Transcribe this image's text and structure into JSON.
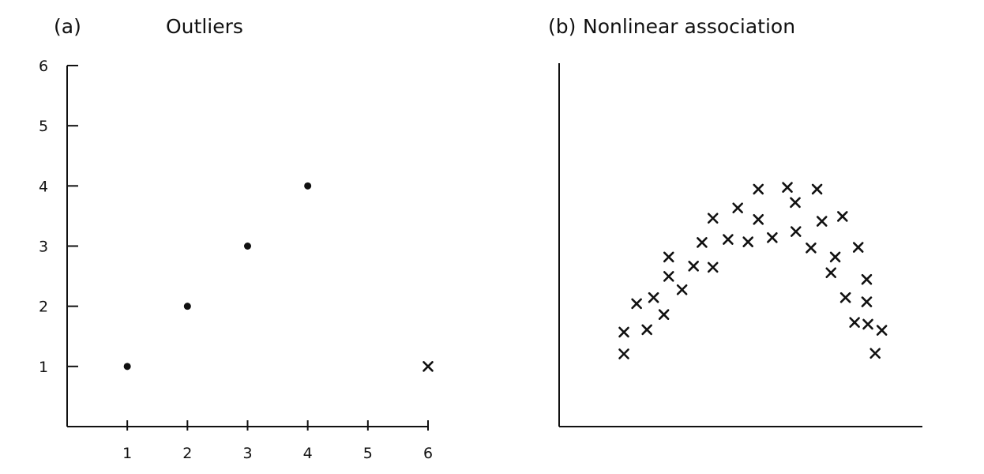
{
  "chart_data": [
    {
      "type": "scatter",
      "panel_label": "(a)",
      "title": "Outliers",
      "xlim": [
        0,
        6
      ],
      "ylim": [
        0,
        6
      ],
      "xticks": [
        "1",
        "2",
        "3",
        "4",
        "5",
        "6"
      ],
      "yticks": [
        "1",
        "2",
        "3",
        "4",
        "5",
        "6"
      ],
      "grid": false,
      "series": [
        {
          "marker": "dot",
          "points": [
            [
              1,
              1
            ],
            [
              2,
              2
            ],
            [
              3,
              3
            ],
            [
              4,
              4
            ]
          ]
        },
        {
          "marker": "cross",
          "points": [
            [
              6,
              1
            ]
          ]
        }
      ]
    },
    {
      "type": "scatter",
      "panel_label": "(b)",
      "title": "Nonlinear association",
      "xlim": [
        0,
        6
      ],
      "ylim": [
        0,
        6
      ],
      "xticks": [],
      "yticks": [],
      "grid": false,
      "series": [
        {
          "marker": "cross",
          "points": [
            [
              1.07,
              1.2
            ],
            [
              1.07,
              1.56
            ],
            [
              1.28,
              2.03
            ],
            [
              1.45,
              1.6
            ],
            [
              1.56,
              2.13
            ],
            [
              1.73,
              1.85
            ],
            [
              1.81,
              2.48
            ],
            [
              1.81,
              2.8
            ],
            [
              2.03,
              2.26
            ],
            [
              2.22,
              2.65
            ],
            [
              2.36,
              3.04
            ],
            [
              2.54,
              3.44
            ],
            [
              2.54,
              2.63
            ],
            [
              2.79,
              3.09
            ],
            [
              2.95,
              3.61
            ],
            [
              3.12,
              3.05
            ],
            [
              3.29,
              3.92
            ],
            [
              3.29,
              3.42
            ],
            [
              3.52,
              3.12
            ],
            [
              3.77,
              3.95
            ],
            [
              3.9,
              3.7
            ],
            [
              3.91,
              3.22
            ],
            [
              4.26,
              3.92
            ],
            [
              4.34,
              3.39
            ],
            [
              4.16,
              2.95
            ],
            [
              4.68,
              3.47
            ],
            [
              4.56,
              2.8
            ],
            [
              4.49,
              2.54
            ],
            [
              4.94,
              2.96
            ],
            [
              5.08,
              2.43
            ],
            [
              4.73,
              2.13
            ],
            [
              5.08,
              2.06
            ],
            [
              4.88,
              1.72
            ],
            [
              5.1,
              1.69
            ],
            [
              5.33,
              1.59
            ],
            [
              5.22,
              1.21
            ]
          ]
        }
      ]
    }
  ]
}
